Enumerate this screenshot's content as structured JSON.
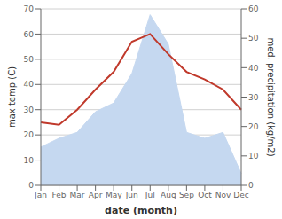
{
  "chart_data": {
    "type": "line",
    "xlabel": "date (month)",
    "ylabel": "max temp (C)",
    "y2label": "med. precipitation (kg/m2)",
    "categories": [
      "Jan",
      "Feb",
      "Mar",
      "Apr",
      "May",
      "Jun",
      "Jul",
      "Aug",
      "Sep",
      "Oct",
      "Nov",
      "Dec"
    ],
    "series": [
      {
        "type": "area",
        "axis": "y2",
        "color": "#c5d8f0",
        "values": [
          13,
          16,
          18,
          25,
          28,
          38,
          58,
          48,
          18,
          16,
          18,
          4
        ]
      },
      {
        "type": "line",
        "color": "#c0392b",
        "values": [
          25,
          24,
          30,
          38,
          45,
          57,
          60,
          52,
          45,
          42,
          38,
          30
        ]
      }
    ],
    "ylim": [
      0,
      70
    ],
    "yticks": [
      0,
      10,
      20,
      30,
      40,
      50,
      60,
      70
    ],
    "y2lim": [
      0,
      60
    ],
    "y2ticks": [
      0,
      10,
      20,
      30,
      40,
      50,
      60
    ],
    "grid": true
  }
}
